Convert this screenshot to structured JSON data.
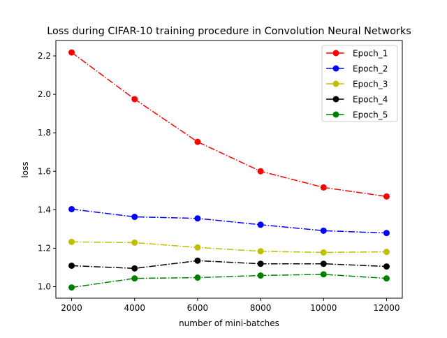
{
  "chart_data": {
    "type": "line",
    "title": "Loss during CIFAR-10 training procedure in Convolution Neural Networks",
    "xlabel": "number of mini-batches",
    "ylabel": "loss",
    "xlim": [
      1500,
      12500
    ],
    "ylim": [
      0.94,
      2.28
    ],
    "xticks": [
      2000,
      4000,
      6000,
      8000,
      10000,
      12000
    ],
    "yticks": [
      1.0,
      1.2,
      1.4,
      1.6,
      1.8,
      2.0,
      2.2
    ],
    "xtick_labels": [
      "2000",
      "4000",
      "6000",
      "8000",
      "10000",
      "12000"
    ],
    "ytick_labels": [
      "1.0",
      "1.2",
      "1.4",
      "1.6",
      "1.8",
      "2.0",
      "2.2"
    ],
    "grid": false,
    "legend_position": "top-right",
    "line_style": "dash-dot",
    "marker": "circle",
    "x": [
      2000,
      4000,
      6000,
      8000,
      10000,
      12000
    ],
    "series": [
      {
        "name": "Epoch_1",
        "color": "#ff0000",
        "values": [
          2.218,
          1.975,
          1.753,
          1.6,
          1.516,
          1.469
        ]
      },
      {
        "name": "Epoch_2",
        "color": "#0000ff",
        "values": [
          1.403,
          1.363,
          1.355,
          1.322,
          1.291,
          1.279
        ]
      },
      {
        "name": "Epoch_3",
        "color": "#bfbf00",
        "values": [
          1.233,
          1.229,
          1.204,
          1.184,
          1.178,
          1.181
        ]
      },
      {
        "name": "Epoch_4",
        "color": "#000000",
        "values": [
          1.109,
          1.095,
          1.135,
          1.119,
          1.119,
          1.105
        ]
      },
      {
        "name": "Epoch_5",
        "color": "#008000",
        "values": [
          0.996,
          1.043,
          1.047,
          1.058,
          1.064,
          1.043
        ]
      }
    ]
  }
}
